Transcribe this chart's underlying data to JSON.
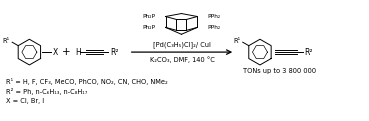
{
  "bg_color": "#ffffff",
  "fig_width": 3.69,
  "fig_height": 1.21,
  "dpi": 100,
  "elements": {
    "reagent_line1": "[Pd(C₃H₅)Cl]₂/ CuI",
    "reagent_line2": "K₂CO₃, DMF, 140 °C",
    "r1_def": "R¹ = H, F, CF₃, MeCO, PhCO, NO₂, CN, CHO, NMe₂",
    "r2_def": "R² = Ph, n-C₆H₁₃, n-C₈H₁₇",
    "x_def": "X = Cl, Br, I",
    "tons": "TONs up to 3 800 000",
    "ph2p_top_left": "Ph₂P",
    "ph2p_bot_left": "Ph₂P",
    "pph2_top_right": "PPh₂",
    "pph2_bot_right": "PPh₂"
  }
}
